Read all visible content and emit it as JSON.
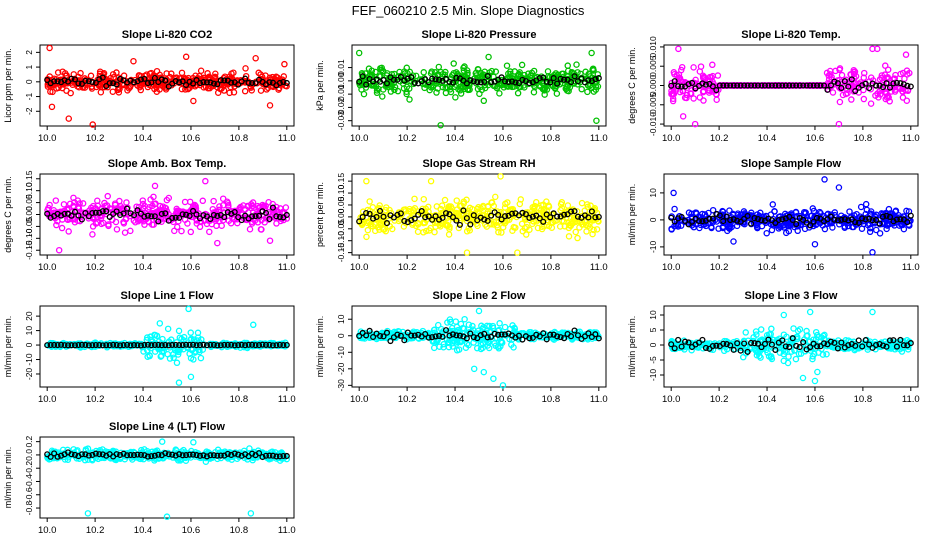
{
  "figure_title": "FEF_060210  2.5 Min. Slope Diagnostics",
  "chart_data": [
    {
      "type": "scatter",
      "title": "Slope Li-820 CO2",
      "ylabel": "Licor ppm per min.",
      "xlabel": "",
      "xlim": [
        9.97,
        11.03
      ],
      "ylim": [
        -3.0,
        2.5
      ],
      "x_ticks": [
        10.0,
        10.2,
        10.4,
        10.6,
        10.8,
        11.0
      ],
      "x_tick_labels": [
        "10.0",
        "10.2",
        "10.4",
        "10.6",
        "10.8",
        "11.0"
      ],
      "y_ticks": [
        -2,
        -1,
        0,
        1,
        2
      ],
      "y_tick_labels": [
        "-2",
        "-1",
        "0",
        "1",
        "2"
      ],
      "color": "#ff0000",
      "center": 0.0,
      "spread": 0.55,
      "outliers": [
        [
          10.01,
          2.3
        ],
        [
          10.02,
          -1.7
        ],
        [
          10.09,
          -2.5
        ],
        [
          10.19,
          -2.9
        ],
        [
          10.36,
          1.4
        ],
        [
          10.58,
          1.7
        ],
        [
          10.61,
          -1.3
        ],
        [
          10.87,
          1.6
        ],
        [
          10.93,
          -1.6
        ],
        [
          10.99,
          1.2
        ]
      ],
      "black_center": 0.0,
      "black_spread": 0.3
    },
    {
      "type": "scatter",
      "title": "Slope Li-820 Pressure",
      "ylabel": "kPa per min.",
      "xlabel": "",
      "xlim": [
        9.97,
        11.03
      ],
      "ylim": [
        -0.034,
        0.027
      ],
      "x_ticks": [
        10.0,
        10.2,
        10.4,
        10.6,
        10.8,
        11.0
      ],
      "x_tick_labels": [
        "10.0",
        "10.2",
        "10.4",
        "10.6",
        "10.8",
        "11.0"
      ],
      "y_ticks": [
        -0.03,
        -0.02,
        -0.01,
        0.0,
        0.01
      ],
      "y_tick_labels": [
        "-0.03",
        "-0.02",
        "-0.01",
        "0.00",
        "0.01"
      ],
      "color": "#00c000",
      "center": 0.0,
      "spread": 0.008,
      "outliers": [
        [
          10.0,
          0.021
        ],
        [
          10.02,
          -0.01
        ],
        [
          10.21,
          -0.014
        ],
        [
          10.34,
          -0.034
        ],
        [
          10.52,
          -0.015
        ],
        [
          10.54,
          0.018
        ],
        [
          10.68,
          0.012
        ],
        [
          10.97,
          0.021
        ],
        [
          10.99,
          -0.03
        ]
      ],
      "black_center": 0.0,
      "black_spread": 0.004
    },
    {
      "type": "scatter",
      "title": "Slope Li-820 Temp.",
      "ylabel": "degrees C per min.",
      "xlabel": "",
      "xlim": [
        9.97,
        11.03
      ],
      "ylim": [
        -0.0105,
        0.0105
      ],
      "x_ticks": [
        10.0,
        10.2,
        10.4,
        10.6,
        10.8,
        11.0
      ],
      "x_tick_labels": [
        "10.0",
        "10.2",
        "10.4",
        "10.6",
        "10.8",
        "11.0"
      ],
      "y_ticks": [
        -0.01,
        -0.005,
        0.0,
        0.005,
        0.01
      ],
      "y_tick_labels": [
        "-0.010",
        "-0.005",
        "0.000",
        "0.005",
        "0.010"
      ],
      "color": "#ff00ff",
      "center": 0.0,
      "spread": 0.004,
      "quiet_range": [
        10.2,
        10.65
      ],
      "outliers": [
        [
          10.03,
          0.0095
        ],
        [
          10.05,
          -0.008
        ],
        [
          10.1,
          -0.01
        ],
        [
          10.7,
          -0.01
        ],
        [
          10.84,
          0.0095
        ],
        [
          10.86,
          0.0095
        ],
        [
          10.98,
          0.008
        ]
      ],
      "black_center": 0.0,
      "black_spread": 0.002
    },
    {
      "type": "scatter",
      "title": "Slope Amb. Box Temp.",
      "ylabel": "degrees C per min.",
      "xlabel": "",
      "xlim": [
        9.97,
        11.03
      ],
      "ylim": [
        -0.17,
        0.17
      ],
      "x_ticks": [
        10.0,
        10.2,
        10.4,
        10.6,
        10.8,
        11.0
      ],
      "x_tick_labels": [
        "10.0",
        "10.2",
        "10.4",
        "10.6",
        "10.8",
        "11.0"
      ],
      "y_ticks": [
        -0.15,
        -0.1,
        -0.05,
        0.0,
        0.05,
        0.1,
        0.15
      ],
      "y_tick_labels": [
        "-0.15",
        "-0.10",
        "-0.05",
        "0.00",
        "0.05",
        "0.10",
        "0.15"
      ],
      "color": "#ff00ff",
      "center": 0.0,
      "spread": 0.05,
      "outliers": [
        [
          10.05,
          -0.15
        ],
        [
          10.45,
          0.12
        ],
        [
          10.66,
          0.14
        ],
        [
          10.71,
          -0.12
        ],
        [
          10.93,
          -0.11
        ]
      ],
      "black_center": 0.0,
      "black_spread": 0.03
    },
    {
      "type": "scatter",
      "title": "Slope Gas Stream RH",
      "ylabel": "percent per min.",
      "xlabel": "",
      "xlim": [
        9.97,
        11.03
      ],
      "ylim": [
        -0.16,
        0.18
      ],
      "x_ticks": [
        10.0,
        10.2,
        10.4,
        10.6,
        10.8,
        11.0
      ],
      "x_tick_labels": [
        "10.0",
        "10.2",
        "10.4",
        "10.6",
        "10.8",
        "11.0"
      ],
      "y_ticks": [
        -0.15,
        -0.1,
        -0.05,
        0.0,
        0.05,
        0.1,
        0.15
      ],
      "y_tick_labels": [
        "-0.15",
        "-0.10",
        "-0.05",
        "0.00",
        "0.05",
        "0.10",
        "0.15"
      ],
      "color": "#ffff00",
      "center": 0.0,
      "spread": 0.06,
      "outliers": [
        [
          10.03,
          0.15
        ],
        [
          10.3,
          0.15
        ],
        [
          10.59,
          0.17
        ],
        [
          10.45,
          -0.15
        ],
        [
          10.66,
          -0.15
        ]
      ],
      "black_center": 0.0,
      "black_spread": 0.04
    },
    {
      "type": "scatter",
      "title": "Slope Sample Flow",
      "ylabel": "ml/min per min.",
      "xlabel": "",
      "xlim": [
        9.97,
        11.03
      ],
      "ylim": [
        -13,
        17
      ],
      "x_ticks": [
        10.0,
        10.2,
        10.4,
        10.6,
        10.8,
        11.0
      ],
      "x_tick_labels": [
        "10.0",
        "10.2",
        "10.4",
        "10.6",
        "10.8",
        "11.0"
      ],
      "y_ticks": [
        -10,
        0,
        10
      ],
      "y_tick_labels": [
        "-10",
        "0",
        "10"
      ],
      "color": "#0000ff",
      "center": 0.0,
      "spread": 3.5,
      "outliers": [
        [
          10.01,
          10
        ],
        [
          10.64,
          15
        ],
        [
          10.7,
          12
        ],
        [
          10.6,
          -9
        ],
        [
          10.84,
          -12
        ],
        [
          10.26,
          -8
        ]
      ],
      "black_center": 0.0,
      "black_spread": 2.0
    },
    {
      "type": "scatter",
      "title": "Slope Line 1 Flow",
      "ylabel": "ml/min per min.",
      "xlabel": "",
      "xlim": [
        9.97,
        11.03
      ],
      "ylim": [
        -29,
        27
      ],
      "x_ticks": [
        10.0,
        10.2,
        10.4,
        10.6,
        10.8,
        11.0
      ],
      "x_tick_labels": [
        "10.0",
        "10.2",
        "10.4",
        "10.6",
        "10.8",
        "11.0"
      ],
      "y_ticks": [
        -20,
        -10,
        0,
        10,
        20
      ],
      "y_tick_labels": [
        "-20",
        "-10",
        "0",
        "10",
        "20"
      ],
      "color": "#00ffff",
      "center": 0.0,
      "spread": 1.2,
      "burst_range": [
        10.4,
        10.65
      ],
      "burst_spread": 9,
      "outliers": [
        [
          10.59,
          25
        ],
        [
          10.55,
          -26
        ],
        [
          10.6,
          -22
        ],
        [
          10.86,
          14
        ],
        [
          10.47,
          15
        ]
      ],
      "black_center": 0.0,
      "black_spread": 0.3
    },
    {
      "type": "scatter",
      "title": "Slope Line 2 Flow",
      "ylabel": "ml/min per min.",
      "xlabel": "",
      "xlim": [
        9.97,
        11.03
      ],
      "ylim": [
        -31,
        18
      ],
      "x_ticks": [
        10.0,
        10.2,
        10.4,
        10.6,
        10.8,
        11.0
      ],
      "x_tick_labels": [
        "10.0",
        "10.2",
        "10.4",
        "10.6",
        "10.8",
        "11.0"
      ],
      "y_ticks": [
        -30,
        -20,
        -10,
        0,
        10
      ],
      "y_tick_labels": [
        "-30",
        "-20",
        "-10",
        "0",
        "10"
      ],
      "color": "#00ffff",
      "center": 0.0,
      "spread": 2.0,
      "burst_range": [
        10.3,
        10.65
      ],
      "burst_spread": 7,
      "outliers": [
        [
          10.5,
          15
        ],
        [
          10.52,
          -22
        ],
        [
          10.56,
          -26
        ],
        [
          10.6,
          -30
        ],
        [
          10.48,
          -20
        ],
        [
          10.44,
          10
        ]
      ],
      "black_center": 0.0,
      "black_spread": 3.0
    },
    {
      "type": "scatter",
      "title": "Slope Line 3 Flow",
      "ylabel": "ml/min per min.",
      "xlabel": "",
      "xlim": [
        9.97,
        11.03
      ],
      "ylim": [
        -14,
        13
      ],
      "x_ticks": [
        10.0,
        10.2,
        10.4,
        10.6,
        10.8,
        11.0
      ],
      "x_tick_labels": [
        "10.0",
        "10.2",
        "10.4",
        "10.6",
        "10.8",
        "11.0"
      ],
      "y_ticks": [
        -10,
        -5,
        0,
        5,
        10
      ],
      "y_tick_labels": [
        "-10",
        "-5",
        "0",
        "5",
        "10"
      ],
      "color": "#00ffff",
      "center": 0.0,
      "spread": 1.3,
      "burst_range": [
        10.3,
        10.65
      ],
      "burst_spread": 4.5,
      "outliers": [
        [
          10.47,
          10
        ],
        [
          10.58,
          11
        ],
        [
          10.84,
          11
        ],
        [
          10.55,
          -11
        ],
        [
          10.6,
          -12
        ],
        [
          10.61,
          -9
        ]
      ],
      "black_center": 0.0,
      "black_spread": 2.5
    },
    {
      "type": "scatter",
      "title": "Slope Line 4 (LT) Flow",
      "ylabel": "ml/min per min.",
      "xlabel": "",
      "xlim": [
        9.97,
        11.03
      ],
      "ylim": [
        -0.95,
        0.27
      ],
      "x_ticks": [
        10.0,
        10.2,
        10.4,
        10.6,
        10.8,
        11.0
      ],
      "x_tick_labels": [
        "10.0",
        "10.2",
        "10.4",
        "10.6",
        "10.8",
        "11.0"
      ],
      "y_ticks": [
        -0.8,
        -0.6,
        -0.4,
        -0.2,
        0.0,
        0.2
      ],
      "y_tick_labels": [
        "-0.8",
        "-0.6",
        "-0.4",
        "-0.2",
        "0.0",
        "0.2"
      ],
      "color": "#00ffff",
      "center": 0.0,
      "spread": 0.07,
      "outliers": [
        [
          10.17,
          -0.88
        ],
        [
          10.5,
          -0.93
        ],
        [
          10.85,
          -0.88
        ],
        [
          10.48,
          0.2
        ],
        [
          10.61,
          0.19
        ]
      ],
      "black_center": 0.0,
      "black_spread": 0.04
    }
  ]
}
